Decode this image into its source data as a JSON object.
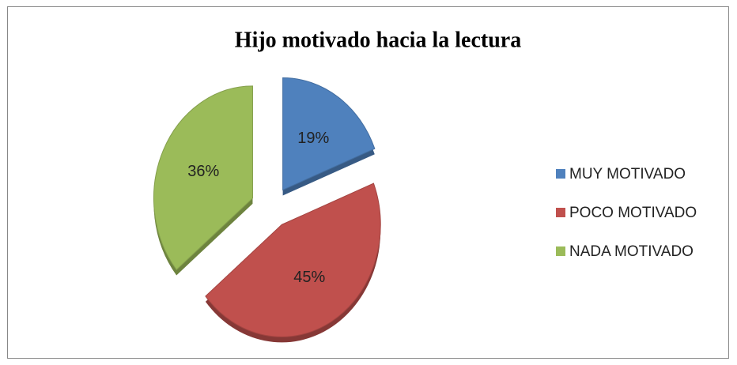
{
  "chart_data": {
    "type": "pie",
    "title": "Hijo motivado hacia la lectura",
    "categories": [
      "MUY MOTIVADO",
      "POCO MOTIVADO",
      "NADA MOTIVADO"
    ],
    "values": [
      19,
      45,
      36
    ],
    "value_labels": [
      "19%",
      "45%",
      "36%"
    ],
    "colors": [
      "#4f81bd",
      "#c0504d",
      "#9bbb59"
    ],
    "legend": "right"
  }
}
